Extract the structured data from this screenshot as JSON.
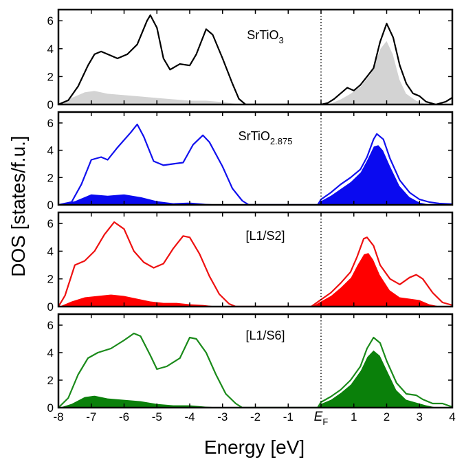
{
  "chart_data": {
    "type": "line",
    "xlabel": "Energy [eV]",
    "ylabel": "DOS [states/f.u.]",
    "xlim": [
      -8,
      4
    ],
    "ylim": [
      0,
      6.8
    ],
    "x_ticks": [
      {
        "value": -8,
        "label": "-8"
      },
      {
        "value": -7,
        "label": "-7"
      },
      {
        "value": -6,
        "label": "-6"
      },
      {
        "value": -5,
        "label": "-5"
      },
      {
        "value": -4,
        "label": "-4"
      },
      {
        "value": -3,
        "label": "-3"
      },
      {
        "value": -2,
        "label": "-2"
      },
      {
        "value": -1,
        "label": "-1"
      },
      {
        "value": 1,
        "label": "1"
      },
      {
        "value": 2,
        "label": "2"
      },
      {
        "value": 3,
        "label": "3"
      },
      {
        "value": 4,
        "label": "4"
      }
    ],
    "fermi_label": {
      "main": "E",
      "sub": "F"
    },
    "y_ticks": [
      0,
      2,
      4,
      6
    ],
    "fermi_level": 0,
    "panels": [
      {
        "label": "SrTiO",
        "label_sub": "3",
        "color": "#000000",
        "fill_color": "#d3d3d3",
        "total": [
          [
            -8,
            0
          ],
          [
            -7.7,
            0.3
          ],
          [
            -7.4,
            1.3
          ],
          [
            -7.1,
            2.8
          ],
          [
            -6.9,
            3.6
          ],
          [
            -6.7,
            3.8
          ],
          [
            -6.5,
            3.6
          ],
          [
            -6.2,
            3.3
          ],
          [
            -5.9,
            3.6
          ],
          [
            -5.6,
            4.3
          ],
          [
            -5.3,
            6.0
          ],
          [
            -5.2,
            6.4
          ],
          [
            -5.0,
            5.5
          ],
          [
            -4.8,
            3.3
          ],
          [
            -4.6,
            2.5
          ],
          [
            -4.3,
            2.9
          ],
          [
            -4.0,
            2.8
          ],
          [
            -3.8,
            3.6
          ],
          [
            -3.5,
            5.4
          ],
          [
            -3.3,
            5.0
          ],
          [
            -3.0,
            3.3
          ],
          [
            -2.7,
            1.5
          ],
          [
            -2.5,
            0.4
          ],
          [
            -2.3,
            0
          ],
          [
            0,
            0
          ],
          [
            0.2,
            0.1
          ],
          [
            0.4,
            0.4
          ],
          [
            0.6,
            0.8
          ],
          [
            0.8,
            1.2
          ],
          [
            1.0,
            1.0
          ],
          [
            1.2,
            1.4
          ],
          [
            1.4,
            2.0
          ],
          [
            1.6,
            2.6
          ],
          [
            1.8,
            4.5
          ],
          [
            2.0,
            5.8
          ],
          [
            2.2,
            4.8
          ],
          [
            2.4,
            2.8
          ],
          [
            2.6,
            1.5
          ],
          [
            2.8,
            0.8
          ],
          [
            3.0,
            0.6
          ],
          [
            3.2,
            0.2
          ],
          [
            3.5,
            0
          ],
          [
            3.8,
            0.2
          ],
          [
            4,
            0.5
          ]
        ],
        "projected": [
          [
            -8,
            0
          ],
          [
            -7.6,
            0.5
          ],
          [
            -7.2,
            0.9
          ],
          [
            -6.9,
            1.0
          ],
          [
            -6.5,
            0.8
          ],
          [
            -6.0,
            0.7
          ],
          [
            -5.5,
            0.6
          ],
          [
            -5.0,
            0.5
          ],
          [
            -4.5,
            0.4
          ],
          [
            -4.0,
            0.3
          ],
          [
            -3.5,
            0.3
          ],
          [
            -3.0,
            0.2
          ],
          [
            -2.5,
            0.05
          ],
          [
            -2.3,
            0
          ],
          [
            0,
            0
          ],
          [
            0.3,
            0.1
          ],
          [
            0.6,
            0.4
          ],
          [
            0.9,
            0.8
          ],
          [
            1.2,
            1.3
          ],
          [
            1.5,
            2.2
          ],
          [
            1.8,
            4.0
          ],
          [
            2.0,
            4.6
          ],
          [
            2.2,
            3.6
          ],
          [
            2.4,
            1.8
          ],
          [
            2.6,
            0.8
          ],
          [
            2.9,
            0.3
          ],
          [
            3.2,
            0.05
          ],
          [
            3.4,
            0
          ]
        ]
      },
      {
        "label": "SrTiO",
        "label_sub": "2.875",
        "color": "#1010ee",
        "fill_color": "#0a0af0",
        "total": [
          [
            -8,
            0
          ],
          [
            -7.6,
            0.2
          ],
          [
            -7.3,
            1.5
          ],
          [
            -7.0,
            3.3
          ],
          [
            -6.7,
            3.5
          ],
          [
            -6.5,
            3.3
          ],
          [
            -6.2,
            4.2
          ],
          [
            -5.8,
            5.3
          ],
          [
            -5.6,
            5.9
          ],
          [
            -5.4,
            5.0
          ],
          [
            -5.1,
            3.2
          ],
          [
            -4.8,
            2.9
          ],
          [
            -4.5,
            3.0
          ],
          [
            -4.2,
            3.1
          ],
          [
            -3.9,
            4.4
          ],
          [
            -3.6,
            5.1
          ],
          [
            -3.4,
            4.6
          ],
          [
            -3.0,
            2.8
          ],
          [
            -2.7,
            1.2
          ],
          [
            -2.4,
            0.3
          ],
          [
            -2.2,
            0
          ],
          [
            -0.1,
            0
          ],
          [
            0,
            0.4
          ],
          [
            0.3,
            0.9
          ],
          [
            0.6,
            1.5
          ],
          [
            0.9,
            2.0
          ],
          [
            1.2,
            2.6
          ],
          [
            1.4,
            3.5
          ],
          [
            1.6,
            4.8
          ],
          [
            1.7,
            5.2
          ],
          [
            1.9,
            4.8
          ],
          [
            2.1,
            3.4
          ],
          [
            2.4,
            1.8
          ],
          [
            2.7,
            0.9
          ],
          [
            3.0,
            0.4
          ],
          [
            3.3,
            0.2
          ],
          [
            3.6,
            0.1
          ],
          [
            4,
            0.05
          ]
        ],
        "projected": [
          [
            -8,
            0
          ],
          [
            -7.5,
            0.3
          ],
          [
            -7.0,
            0.8
          ],
          [
            -6.5,
            0.7
          ],
          [
            -6.0,
            0.8
          ],
          [
            -5.5,
            0.6
          ],
          [
            -5.0,
            0.3
          ],
          [
            -4.5,
            0.15
          ],
          [
            -4.0,
            0.2
          ],
          [
            -3.5,
            0.1
          ],
          [
            -3.0,
            0.05
          ],
          [
            -2.5,
            0
          ],
          [
            -0.1,
            0
          ],
          [
            0,
            0.3
          ],
          [
            0.3,
            0.7
          ],
          [
            0.6,
            1.2
          ],
          [
            0.9,
            1.7
          ],
          [
            1.2,
            2.4
          ],
          [
            1.4,
            3.3
          ],
          [
            1.6,
            4.3
          ],
          [
            1.75,
            4.4
          ],
          [
            1.9,
            4.0
          ],
          [
            2.1,
            2.9
          ],
          [
            2.4,
            1.4
          ],
          [
            2.7,
            0.6
          ],
          [
            3.0,
            0.2
          ],
          [
            3.3,
            0.05
          ],
          [
            3.6,
            0
          ]
        ]
      },
      {
        "label": "[L1/S2]",
        "label_sub": "",
        "color": "#ee1010",
        "fill_color": "#ff0000",
        "total": [
          [
            -8,
            0
          ],
          [
            -7.8,
            0.8
          ],
          [
            -7.5,
            3.0
          ],
          [
            -7.2,
            3.3
          ],
          [
            -6.9,
            4.0
          ],
          [
            -6.6,
            5.2
          ],
          [
            -6.3,
            6.1
          ],
          [
            -6.0,
            5.6
          ],
          [
            -5.7,
            4.0
          ],
          [
            -5.4,
            3.2
          ],
          [
            -5.1,
            2.8
          ],
          [
            -4.8,
            3.1
          ],
          [
            -4.5,
            4.2
          ],
          [
            -4.2,
            5.1
          ],
          [
            -4.0,
            5.0
          ],
          [
            -3.7,
            3.8
          ],
          [
            -3.4,
            2.2
          ],
          [
            -3.1,
            0.9
          ],
          [
            -2.8,
            0.2
          ],
          [
            -2.6,
            0
          ],
          [
            -0.3,
            0
          ],
          [
            0,
            0.5
          ],
          [
            0.3,
            1.0
          ],
          [
            0.6,
            1.7
          ],
          [
            0.9,
            2.5
          ],
          [
            1.1,
            3.6
          ],
          [
            1.3,
            4.9
          ],
          [
            1.4,
            5.0
          ],
          [
            1.6,
            4.4
          ],
          [
            1.8,
            3.0
          ],
          [
            2.1,
            2.0
          ],
          [
            2.4,
            1.6
          ],
          [
            2.7,
            2.1
          ],
          [
            2.9,
            2.3
          ],
          [
            3.1,
            2.0
          ],
          [
            3.4,
            1.0
          ],
          [
            3.7,
            0.3
          ],
          [
            4,
            0.1
          ]
        ],
        "projected": [
          [
            -8,
            0
          ],
          [
            -7.6,
            0.4
          ],
          [
            -7.2,
            0.7
          ],
          [
            -6.8,
            0.8
          ],
          [
            -6.4,
            0.9
          ],
          [
            -6.0,
            0.8
          ],
          [
            -5.6,
            0.6
          ],
          [
            -5.2,
            0.4
          ],
          [
            -4.8,
            0.3
          ],
          [
            -4.4,
            0.3
          ],
          [
            -4.0,
            0.2
          ],
          [
            -3.6,
            0.15
          ],
          [
            -3.2,
            0.05
          ],
          [
            -2.8,
            0
          ],
          [
            -0.3,
            0
          ],
          [
            0,
            0.4
          ],
          [
            0.3,
            0.8
          ],
          [
            0.6,
            1.4
          ],
          [
            0.9,
            2.1
          ],
          [
            1.1,
            3.0
          ],
          [
            1.3,
            3.8
          ],
          [
            1.45,
            3.9
          ],
          [
            1.6,
            3.4
          ],
          [
            1.8,
            2.3
          ],
          [
            2.1,
            1.2
          ],
          [
            2.4,
            0.7
          ],
          [
            2.7,
            0.6
          ],
          [
            3.0,
            0.5
          ],
          [
            3.3,
            0.2
          ],
          [
            3.6,
            0.05
          ],
          [
            3.8,
            0
          ]
        ]
      },
      {
        "label": "[L1/S6]",
        "label_sub": "",
        "color": "#1a8a1a",
        "fill_color": "#0a800a",
        "total": [
          [
            -8,
            0
          ],
          [
            -7.7,
            0.7
          ],
          [
            -7.4,
            2.4
          ],
          [
            -7.1,
            3.6
          ],
          [
            -6.8,
            4.0
          ],
          [
            -6.4,
            4.3
          ],
          [
            -6.0,
            4.9
          ],
          [
            -5.7,
            5.4
          ],
          [
            -5.5,
            5.2
          ],
          [
            -5.2,
            3.8
          ],
          [
            -5.0,
            2.8
          ],
          [
            -4.7,
            3.0
          ],
          [
            -4.3,
            3.6
          ],
          [
            -4.0,
            5.1
          ],
          [
            -3.8,
            5.0
          ],
          [
            -3.5,
            4.0
          ],
          [
            -3.2,
            2.4
          ],
          [
            -2.9,
            1.0
          ],
          [
            -2.6,
            0.3
          ],
          [
            -2.4,
            0
          ],
          [
            -0.1,
            0
          ],
          [
            0,
            0.4
          ],
          [
            0.3,
            0.8
          ],
          [
            0.6,
            1.3
          ],
          [
            0.9,
            2.0
          ],
          [
            1.2,
            3.0
          ],
          [
            1.4,
            4.3
          ],
          [
            1.6,
            5.1
          ],
          [
            1.8,
            4.7
          ],
          [
            2.0,
            3.4
          ],
          [
            2.3,
            1.8
          ],
          [
            2.6,
            1.0
          ],
          [
            2.9,
            0.9
          ],
          [
            3.1,
            0.6
          ],
          [
            3.4,
            0.3
          ],
          [
            3.7,
            0.3
          ],
          [
            4,
            0.05
          ]
        ],
        "projected": [
          [
            -8,
            0
          ],
          [
            -7.6,
            0.3
          ],
          [
            -7.2,
            0.8
          ],
          [
            -6.9,
            0.9
          ],
          [
            -6.5,
            0.7
          ],
          [
            -6.0,
            0.6
          ],
          [
            -5.5,
            0.5
          ],
          [
            -5.0,
            0.3
          ],
          [
            -4.5,
            0.2
          ],
          [
            -4.0,
            0.2
          ],
          [
            -3.5,
            0.1
          ],
          [
            -3.0,
            0.05
          ],
          [
            -2.6,
            0
          ],
          [
            -0.1,
            0
          ],
          [
            0,
            0.3
          ],
          [
            0.3,
            0.6
          ],
          [
            0.6,
            1.1
          ],
          [
            0.9,
            1.7
          ],
          [
            1.2,
            2.7
          ],
          [
            1.4,
            3.7
          ],
          [
            1.6,
            4.2
          ],
          [
            1.8,
            3.8
          ],
          [
            2.0,
            2.8
          ],
          [
            2.3,
            1.3
          ],
          [
            2.6,
            0.6
          ],
          [
            2.9,
            0.4
          ],
          [
            3.2,
            0.2
          ],
          [
            3.5,
            0.05
          ],
          [
            3.8,
            0
          ]
        ]
      }
    ]
  }
}
